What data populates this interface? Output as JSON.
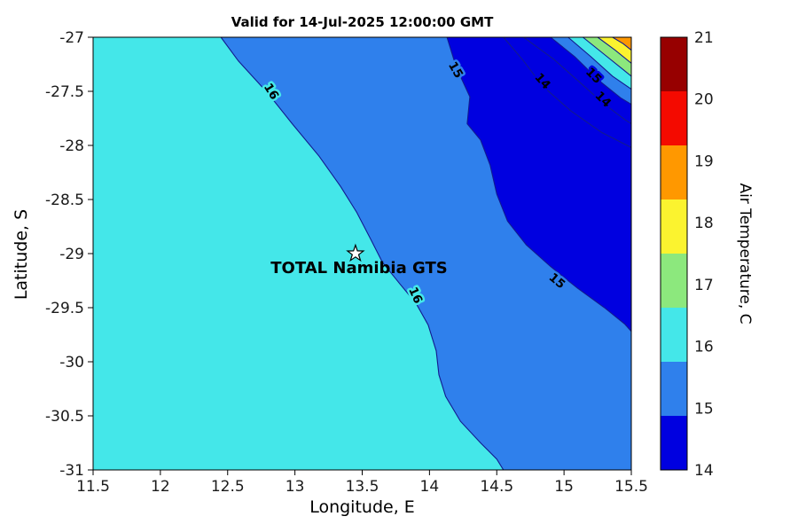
{
  "chart_data": {
    "type": "heatmap",
    "subtype": "filled-contour-map",
    "title": "Valid for 14-Jul-2025 12:00:00 GMT",
    "xlabel": "Longitude, E",
    "ylabel": "Latitude, S",
    "xlim": [
      11.5,
      15.5
    ],
    "ylim": [
      -31,
      -27
    ],
    "xticks": [
      "11.5",
      "12",
      "12.5",
      "13",
      "13.5",
      "14",
      "14.5",
      "15",
      "15.5"
    ],
    "yticks": [
      "-27",
      "-27.5",
      "-28",
      "-28.5",
      "-29",
      "-29.5",
      "-30",
      "-30.5",
      "-31"
    ],
    "grid": false,
    "line_color": "#121A8F",
    "base_region": {
      "range": "16-17",
      "color": "#44E7E9"
    },
    "colorbar": {
      "label": "Air Temperature, C",
      "ticks": [
        "21",
        "20",
        "19",
        "18",
        "17",
        "16",
        "15",
        "14"
      ],
      "bands": [
        {
          "range": "21+",
          "color": "#970000"
        },
        {
          "range": "20-21",
          "color": "#F40A00"
        },
        {
          "range": "19-20",
          "color": "#FF9800"
        },
        {
          "range": "18-19",
          "color": "#FBF32F"
        },
        {
          "range": "17-18",
          "color": "#8CE87D"
        },
        {
          "range": "16-17",
          "color": "#44E7E9"
        },
        {
          "range": "15-16",
          "color": "#2F80EC"
        },
        {
          "range": "14-15",
          "color": "#0000E0"
        }
      ]
    },
    "contours": [
      {
        "level": 16,
        "fill": "#2F80EC",
        "points": [
          [
            12.45,
            -27
          ],
          [
            12.58,
            -27.22
          ],
          [
            12.8,
            -27.52
          ],
          [
            12.98,
            -27.8
          ],
          [
            13.18,
            -28.1
          ],
          [
            13.34,
            -28.38
          ],
          [
            13.46,
            -28.62
          ],
          [
            13.56,
            -28.86
          ],
          [
            13.65,
            -29.08
          ],
          [
            13.78,
            -29.28
          ],
          [
            13.9,
            -29.46
          ],
          [
            13.99,
            -29.66
          ],
          [
            14.05,
            -29.9
          ],
          [
            14.07,
            -30.12
          ],
          [
            14.12,
            -30.32
          ],
          [
            14.23,
            -30.55
          ],
          [
            14.38,
            -30.75
          ],
          [
            14.5,
            -30.9
          ],
          [
            14.55,
            -31
          ]
        ],
        "close": [
          [
            15.5,
            -31
          ],
          [
            15.5,
            -27
          ]
        ]
      },
      {
        "level": 15,
        "fill": "#0000E0",
        "points": [
          [
            14.13,
            -27
          ],
          [
            14.2,
            -27.28
          ],
          [
            14.3,
            -27.55
          ],
          [
            14.28,
            -27.8
          ],
          [
            14.38,
            -27.95
          ],
          [
            14.45,
            -28.18
          ],
          [
            14.5,
            -28.45
          ],
          [
            14.58,
            -28.7
          ],
          [
            14.72,
            -28.92
          ],
          [
            14.9,
            -29.12
          ],
          [
            15.1,
            -29.32
          ],
          [
            15.3,
            -29.5
          ],
          [
            15.45,
            -29.65
          ],
          [
            15.5,
            -29.72
          ]
        ],
        "close": [
          [
            15.5,
            -27
          ]
        ]
      },
      {
        "level": 14,
        "fill": null,
        "points": [
          [
            14.55,
            -27
          ],
          [
            14.7,
            -27.22
          ],
          [
            14.84,
            -27.45
          ],
          [
            15.05,
            -27.68
          ],
          [
            15.28,
            -27.88
          ],
          [
            15.5,
            -28.02
          ]
        ]
      },
      {
        "level": 14,
        "fill": null,
        "points": [
          [
            14.7,
            -27
          ],
          [
            14.92,
            -27.2
          ],
          [
            15.12,
            -27.42
          ],
          [
            15.3,
            -27.62
          ],
          [
            15.45,
            -27.76
          ],
          [
            15.5,
            -27.8
          ]
        ]
      },
      {
        "level": 15,
        "fill": "#2F80EC",
        "points": [
          [
            14.9,
            -27
          ],
          [
            15.08,
            -27.18
          ],
          [
            15.26,
            -27.4
          ],
          [
            15.42,
            -27.56
          ],
          [
            15.5,
            -27.62
          ]
        ],
        "close": [
          [
            15.5,
            -27
          ]
        ]
      },
      {
        "level": 16,
        "fill": "#44E7E9",
        "points": [
          [
            15.03,
            -27
          ],
          [
            15.2,
            -27.18
          ],
          [
            15.36,
            -27.36
          ],
          [
            15.5,
            -27.48
          ]
        ],
        "close": [
          [
            15.5,
            -27
          ]
        ]
      },
      {
        "level": 17,
        "fill": "#8CE87D",
        "points": [
          [
            15.14,
            -27
          ],
          [
            15.3,
            -27.16
          ],
          [
            15.44,
            -27.3
          ],
          [
            15.5,
            -27.36
          ]
        ],
        "close": [
          [
            15.5,
            -27
          ]
        ]
      },
      {
        "level": 18,
        "fill": "#FBF32F",
        "points": [
          [
            15.25,
            -27
          ],
          [
            15.38,
            -27.12
          ],
          [
            15.5,
            -27.24
          ]
        ],
        "close": [
          [
            15.5,
            -27
          ]
        ]
      },
      {
        "level": 19,
        "fill": "#FF9800",
        "points": [
          [
            15.36,
            -27
          ],
          [
            15.44,
            -27.06
          ],
          [
            15.5,
            -27.12
          ]
        ],
        "close": [
          [
            15.5,
            -27
          ]
        ]
      }
    ],
    "contour_labels": [
      {
        "text": "16",
        "lon": 12.8,
        "lat": -27.52,
        "rot": 58,
        "halo": "#44E7E9"
      },
      {
        "text": "16",
        "lon": 13.87,
        "lat": -29.4,
        "rot": 66,
        "halo": "#44E7E9"
      },
      {
        "text": "15",
        "lon": 14.17,
        "lat": -27.32,
        "rot": 60,
        "halo": "#2F80EC"
      },
      {
        "text": "15",
        "lon": 14.93,
        "lat": -29.28,
        "rot": 40,
        "halo": "#2F80EC"
      },
      {
        "text": "14",
        "lon": 14.82,
        "lat": -27.43,
        "rot": 48,
        "halo": "#0000E0"
      },
      {
        "text": "15",
        "lon": 15.2,
        "lat": -27.38,
        "rot": 45,
        "halo": "#0000E0"
      },
      {
        "text": "14",
        "lon": 15.27,
        "lat": -27.6,
        "rot": 45,
        "halo": "#0000E0"
      }
    ],
    "station": {
      "label": "TOTAL Namibia GTS",
      "lon": 13.45,
      "lat": -29
    }
  }
}
